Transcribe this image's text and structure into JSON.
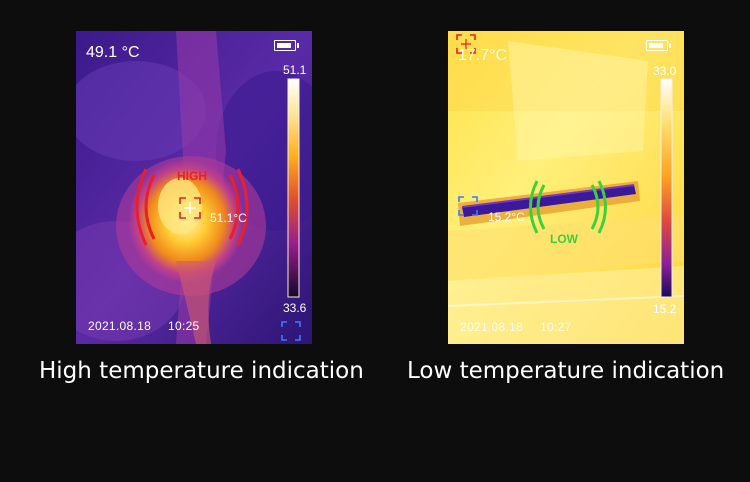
{
  "panels": {
    "high": {
      "top_temp": "49.1 °C",
      "scale_max": "51.1",
      "scale_min": "33.6",
      "indicator_label": "HIGH",
      "spot_temp": "51.1°C",
      "date": "2021.08.18",
      "time": "10:25",
      "indicator_color": "#e8202a",
      "icons": [
        "battery-icon",
        "crosshair-icon",
        "alarm-arcs-icon",
        "focus-bracket-icon"
      ]
    },
    "low": {
      "top_temp": "17.7°C",
      "scale_max": "33.0",
      "scale_min": "15.2",
      "indicator_label": "LOW",
      "spot_temp": "15.2°C",
      "date": "2021.08.18",
      "time": "10:27",
      "indicator_color": "#3cd13c",
      "icons": [
        "battery-icon",
        "crosshair-icon",
        "alarm-arcs-icon",
        "focus-bracket-icon"
      ]
    }
  },
  "captions": {
    "high": "High temperature indication",
    "low": "Low temperature indication"
  }
}
